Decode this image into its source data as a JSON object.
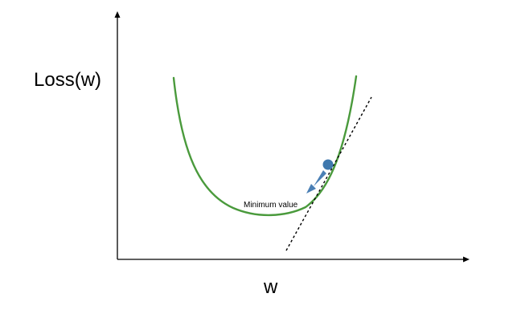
{
  "diagram": {
    "y_axis_label": "Loss(w)",
    "x_axis_label": "w",
    "minimum_label": "Minimum value",
    "colors": {
      "curve": "#4a9a3c",
      "ball": "#3f78ad",
      "arrow": "#4a7fb5",
      "axes": "#000000",
      "tangent": "#000000"
    }
  }
}
